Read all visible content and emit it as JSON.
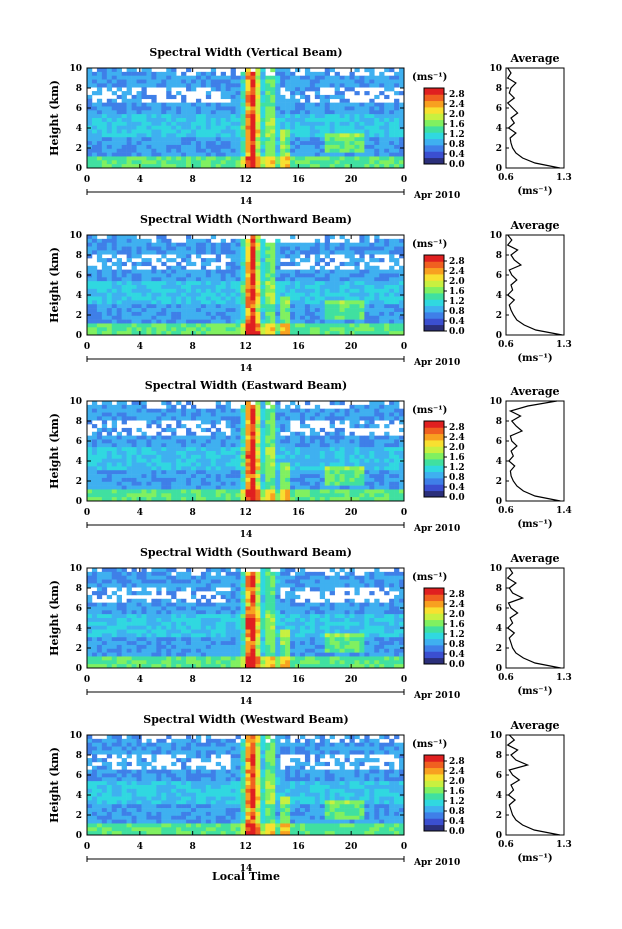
{
  "xlabel": "Local Time",
  "date_label": "Apr 2010",
  "day_label": "14",
  "colorbar": {
    "unit": "(ms⁻¹)",
    "ticks": [
      "2.8",
      "2.4",
      "2.0",
      "1.6",
      "1.2",
      "0.8",
      "0.4",
      "0.0"
    ],
    "colors": [
      "#2b2f7a",
      "#3b4fd0",
      "#3f7fe8",
      "#3fb0f0",
      "#30d8e0",
      "#40e0a0",
      "#80f060",
      "#c8f040",
      "#f8e030",
      "#f8a020",
      "#f06020",
      "#e02020"
    ]
  },
  "chart_data": [
    {
      "type": "heatmap",
      "title": "Spectral Width (Vertical Beam)",
      "ylabel": "Height (km)",
      "xticks": [
        "0",
        "4",
        "8",
        "12",
        "16",
        "20",
        "0"
      ],
      "yticks": [
        "0",
        "2",
        "4",
        "6",
        "8",
        "10"
      ],
      "xlim": [
        0,
        24
      ],
      "ylim": [
        0,
        10
      ],
      "average": {
        "title": "Average",
        "xlabel": "(ms⁻¹)",
        "xticks": [
          "0.6",
          "1.3"
        ],
        "xlim": [
          0.6,
          1.3
        ],
        "heights": [
          0,
          0.5,
          1,
          1.5,
          2,
          2.5,
          3,
          3.5,
          4,
          4.5,
          5,
          5.5,
          6,
          6.5,
          7,
          7.5,
          8,
          8.5,
          9,
          9.5,
          10
        ],
        "values": [
          1.25,
          0.95,
          0.8,
          0.72,
          0.68,
          0.66,
          0.65,
          0.72,
          0.63,
          0.7,
          0.66,
          0.74,
          0.68,
          0.62,
          0.7,
          0.64,
          0.66,
          0.72,
          0.62,
          0.66,
          0.62
        ]
      }
    },
    {
      "type": "heatmap",
      "title": "Spectral Width (Northward Beam)",
      "ylabel": "Height (km)",
      "xticks": [
        "0",
        "4",
        "8",
        "12",
        "16",
        "20",
        "0"
      ],
      "yticks": [
        "0",
        "2",
        "4",
        "6",
        "8",
        "10"
      ],
      "xlim": [
        0,
        24
      ],
      "ylim": [
        0,
        10
      ],
      "average": {
        "title": "Average",
        "xlabel": "(ms⁻¹)",
        "xticks": [
          "0.6",
          "1.3"
        ],
        "xlim": [
          0.6,
          1.3
        ],
        "heights": [
          0,
          0.5,
          1,
          1.5,
          2,
          2.5,
          3,
          3.5,
          4,
          4.5,
          5,
          5.5,
          6,
          6.5,
          7,
          7.5,
          8,
          8.5,
          9,
          9.5,
          10
        ],
        "values": [
          1.28,
          0.96,
          0.82,
          0.73,
          0.69,
          0.66,
          0.64,
          0.7,
          0.62,
          0.68,
          0.66,
          0.73,
          0.67,
          0.64,
          0.78,
          0.7,
          0.66,
          0.74,
          0.62,
          0.67,
          0.62
        ]
      }
    },
    {
      "type": "heatmap",
      "title": "Spectral Width (Eastward Beam)",
      "ylabel": "Height (km)",
      "xticks": [
        "0",
        "4",
        "8",
        "12",
        "16",
        "20",
        "0"
      ],
      "yticks": [
        "0",
        "2",
        "4",
        "6",
        "8",
        "10"
      ],
      "xlim": [
        0,
        24
      ],
      "ylim": [
        0,
        10
      ],
      "average": {
        "title": "Average",
        "xlabel": "(ms⁻¹)",
        "xticks": [
          "0.6",
          "1.4"
        ],
        "xlim": [
          0.6,
          1.4
        ],
        "heights": [
          0,
          0.5,
          1,
          1.5,
          2,
          2.5,
          3,
          3.5,
          4,
          4.5,
          5,
          5.5,
          6,
          6.5,
          7,
          7.5,
          8,
          8.5,
          9,
          9.5,
          10
        ],
        "values": [
          1.35,
          1.0,
          0.84,
          0.75,
          0.7,
          0.67,
          0.66,
          0.72,
          0.64,
          0.7,
          0.67,
          0.75,
          0.68,
          0.66,
          0.82,
          0.74,
          0.68,
          0.8,
          0.66,
          0.9,
          1.3
        ]
      }
    },
    {
      "type": "heatmap",
      "title": "Spectral Width (Southward Beam)",
      "ylabel": "Height (km)",
      "xticks": [
        "0",
        "4",
        "8",
        "12",
        "16",
        "20",
        "0"
      ],
      "yticks": [
        "0",
        "2",
        "4",
        "6",
        "8",
        "10"
      ],
      "xlim": [
        0,
        24
      ],
      "ylim": [
        0,
        10
      ],
      "average": {
        "title": "Average",
        "xlabel": "(ms⁻¹)",
        "xticks": [
          "0.6",
          "1.3"
        ],
        "xlim": [
          0.6,
          1.3
        ],
        "heights": [
          0,
          0.5,
          1,
          1.5,
          2,
          2.5,
          3,
          3.5,
          4,
          4.5,
          5,
          5.5,
          6,
          6.5,
          7,
          7.5,
          8,
          8.5,
          9,
          9.5,
          10
        ],
        "values": [
          1.26,
          0.95,
          0.81,
          0.72,
          0.68,
          0.66,
          0.64,
          0.7,
          0.62,
          0.68,
          0.65,
          0.74,
          0.66,
          0.63,
          0.8,
          0.68,
          0.64,
          0.72,
          0.62,
          0.68,
          0.64
        ]
      }
    },
    {
      "type": "heatmap",
      "title": "Spectral Width (Westward Beam)",
      "ylabel": "Height (km)",
      "xticks": [
        "0",
        "4",
        "8",
        "12",
        "16",
        "20",
        "0"
      ],
      "yticks": [
        "0",
        "2",
        "4",
        "6",
        "8",
        "10"
      ],
      "xlim": [
        0,
        24
      ],
      "ylim": [
        0,
        10
      ],
      "average": {
        "title": "Average",
        "xlabel": "(ms⁻¹)",
        "xticks": [
          "0.6",
          "1.3"
        ],
        "xlim": [
          0.6,
          1.3
        ],
        "heights": [
          0,
          0.5,
          1,
          1.5,
          2,
          2.5,
          3,
          3.5,
          4,
          4.5,
          5,
          5.5,
          6,
          6.5,
          7,
          7.5,
          8,
          8.5,
          9,
          9.5,
          10
        ],
        "values": [
          1.25,
          0.94,
          0.8,
          0.72,
          0.68,
          0.66,
          0.64,
          0.71,
          0.63,
          0.69,
          0.66,
          0.76,
          0.68,
          0.64,
          0.86,
          0.72,
          0.66,
          0.74,
          0.62,
          0.7,
          0.64
        ]
      }
    }
  ]
}
